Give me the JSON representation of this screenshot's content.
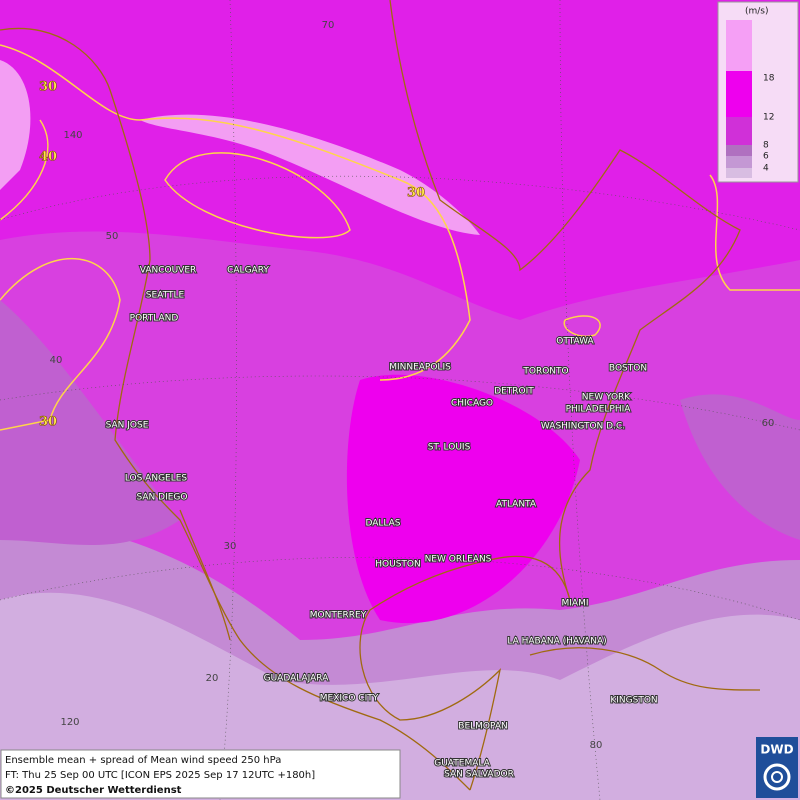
{
  "legend": {
    "unit": "(m/s)",
    "ticks": [
      18,
      12,
      8,
      6,
      4
    ]
  },
  "cities": [
    "VANCOUVER",
    "CALGARY",
    "SEATTLE",
    "PORTLAND",
    "MINNEAPOLIS",
    "TORONTO",
    "OTTAWA",
    "BOSTON",
    "DETROIT",
    "NEW YORK",
    "PHILADELPHIA",
    "CHICAGO",
    "WASHINGTON D.C.",
    "SAN JOSE",
    "ST. LOUIS",
    "LOS ANGELES",
    "SAN DIEGO",
    "ATLANTA",
    "DALLAS",
    "HOUSTON",
    "NEW ORLEANS",
    "MIAMI",
    "MONTERREY",
    "LA HABANA (HAVANA)",
    "GUADALAJARA",
    "MEXICO CITY",
    "KINGSTON",
    "BELMOPAN",
    "GUATEMALA",
    "SAN SALVADOR"
  ],
  "grid_labels": [
    70,
    140,
    50,
    40,
    60,
    30,
    20,
    120,
    80
  ],
  "contour_labels": [
    30,
    40,
    30,
    30
  ],
  "footer": {
    "line1": "Ensemble mean + spread of Mean wind speed 250 hPa",
    "line2": "FT: Thu 25 Sep 00 UTC [ICON EPS 2025 Sep 17 12UTC +180h]",
    "copyright": "©2025 Deutscher Wetterdienst"
  },
  "logo": "DWD"
}
